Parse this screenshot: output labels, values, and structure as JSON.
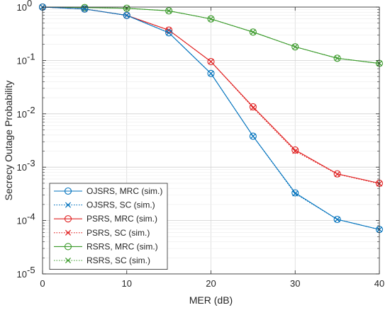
{
  "chart_data": {
    "type": "line",
    "xlabel": "MER (dB)",
    "ylabel": "Secrecy Outage Probability",
    "xlim": [
      0,
      40
    ],
    "ylim": [
      1e-05,
      1
    ],
    "yscale": "log",
    "grid": true,
    "legend_position": "bottom-left",
    "x": [
      0,
      5,
      10,
      15,
      20,
      25,
      30,
      35,
      40
    ],
    "x_ticks": [
      "0",
      "10",
      "20",
      "30",
      "40"
    ],
    "y_ticks": [
      {
        "base": "10",
        "exp": "0"
      },
      {
        "base": "10",
        "exp": "-1"
      },
      {
        "base": "10",
        "exp": "-2"
      },
      {
        "base": "10",
        "exp": "-3"
      },
      {
        "base": "10",
        "exp": "-4"
      },
      {
        "base": "10",
        "exp": "-5"
      }
    ],
    "series": [
      {
        "name": "OJSRS, MRC (sim.)",
        "color": "#0072BD",
        "marker": "circle",
        "dash": "solid",
        "values": [
          1.0,
          0.92,
          0.7,
          0.33,
          0.057,
          0.0038,
          0.00033,
          0.000105,
          6.8e-05
        ]
      },
      {
        "name": "OJSRS, SC (sim.)",
        "color": "#0072BD",
        "marker": "x",
        "dash": "dotted",
        "values": [
          1.0,
          0.92,
          0.7,
          0.33,
          0.057,
          0.0038,
          0.00032,
          0.000105,
          6.8e-05
        ]
      },
      {
        "name": "PSRS, MRC (sim.)",
        "color": "#D95319",
        "render_color": "#E02020",
        "marker": "circle",
        "dash": "solid",
        "values": [
          1.0,
          0.92,
          0.7,
          0.37,
          0.095,
          0.0135,
          0.0021,
          0.00075,
          0.0005
        ]
      },
      {
        "name": "PSRS, SC (sim.)",
        "color": "#D95319",
        "render_color": "#E02020",
        "marker": "x",
        "dash": "dotted",
        "values": [
          1.0,
          0.92,
          0.7,
          0.37,
          0.095,
          0.013,
          0.002,
          0.00074,
          0.00049
        ]
      },
      {
        "name": "RSRS, MRC (sim.)",
        "color": "#2CA02C",
        "render_color": "#3A9A2A",
        "marker": "circle",
        "dash": "solid",
        "values": [
          1.0,
          0.98,
          0.95,
          0.85,
          0.6,
          0.34,
          0.18,
          0.11,
          0.088
        ]
      },
      {
        "name": "RSRS, SC (sim.)",
        "color": "#2CA02C",
        "render_color": "#3A9A2A",
        "marker": "x",
        "dash": "dotted",
        "values": [
          1.0,
          0.98,
          0.95,
          0.85,
          0.6,
          0.34,
          0.18,
          0.11,
          0.088
        ]
      }
    ]
  }
}
